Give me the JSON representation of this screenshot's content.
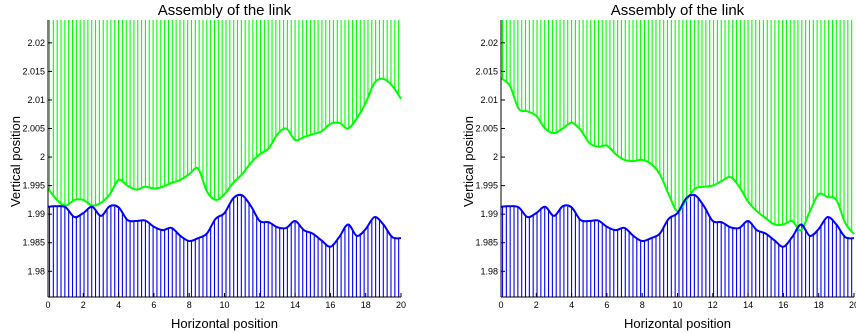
{
  "chart_data": [
    {
      "type": "line",
      "title": "Assembly of the link",
      "xlabel": "Horizontal position",
      "ylabel": "Vertical position",
      "xlim": [
        0,
        20
      ],
      "ylim": [
        1.9755,
        2.024
      ],
      "xticks": [
        "0",
        "2",
        "4",
        "6",
        "8",
        "10",
        "12",
        "14",
        "16",
        "18",
        "20"
      ],
      "yticks": [
        "1.98",
        "1.985",
        "1.99",
        "1.995",
        "2",
        "2.005",
        "2.01",
        "2.015",
        "2.02"
      ],
      "grid": false,
      "series": [
        {
          "color": "#00ff00",
          "fill": "above",
          "x": [
            0,
            0.5,
            1,
            1.5,
            2,
            2.5,
            3,
            3.5,
            4,
            4.5,
            5,
            5.5,
            6,
            6.5,
            7,
            7.5,
            8,
            8.5,
            9,
            9.5,
            10,
            10.5,
            11,
            11.5,
            12,
            12.5,
            13,
            13.5,
            14,
            14.5,
            15,
            15.5,
            16,
            16.5,
            17,
            17.5,
            18,
            18.5,
            19,
            19.5,
            20
          ],
          "y": [
            1.9945,
            1.9925,
            1.9915,
            1.9925,
            1.9925,
            1.9915,
            1.992,
            1.9935,
            1.996,
            1.995,
            1.9943,
            1.9948,
            1.9945,
            1.9948,
            1.9955,
            1.996,
            1.997,
            1.998,
            1.994,
            1.9925,
            1.9935,
            1.9955,
            1.997,
            1.999,
            2.0005,
            2.0015,
            2.004,
            2.005,
            2.003,
            2.0035,
            2.004,
            2.0045,
            2.0058,
            2.006,
            2.005,
            2.0068,
            2.0095,
            2.013,
            2.0137,
            2.0125,
            2.0102
          ]
        },
        {
          "color": "#0000ff",
          "fill": "below",
          "x": [
            0,
            0.5,
            1,
            1.5,
            2,
            2.5,
            3,
            3.5,
            4,
            4.5,
            5,
            5.5,
            6,
            6.5,
            7,
            7.5,
            8,
            8.5,
            9,
            9.5,
            10,
            10.5,
            11,
            11.5,
            12,
            12.5,
            13,
            13.5,
            14,
            14.5,
            15,
            15.5,
            16,
            16.5,
            17,
            17.5,
            18,
            18.5,
            19,
            19.5,
            20
          ],
          "y": [
            1.9913,
            1.9914,
            1.9912,
            1.9895,
            1.9902,
            1.9913,
            1.9897,
            1.9914,
            1.9912,
            1.989,
            1.9888,
            1.9889,
            1.9878,
            1.9872,
            1.9876,
            1.9862,
            1.9853,
            1.9858,
            1.9866,
            1.9892,
            1.9902,
            1.9928,
            1.9933,
            1.9914,
            1.9888,
            1.9886,
            1.9877,
            1.9876,
            1.9888,
            1.9872,
            1.9866,
            1.9854,
            1.9843,
            1.986,
            1.9882,
            1.9862,
            1.9874,
            1.9895,
            1.9882,
            1.986,
            1.9858
          ]
        }
      ]
    },
    {
      "type": "line",
      "title": "Assembly of the link",
      "xlabel": "Horizontal position",
      "ylabel": "Vertical position",
      "xlim": [
        0,
        20
      ],
      "ylim": [
        1.9755,
        2.024
      ],
      "xticks": [
        "0",
        "2",
        "4",
        "6",
        "8",
        "10",
        "12",
        "14",
        "16",
        "18",
        "20"
      ],
      "yticks": [
        "1.98",
        "1.985",
        "1.99",
        "1.995",
        "2",
        "2.005",
        "2.01",
        "2.015",
        "2.02"
      ],
      "grid": false,
      "series": [
        {
          "color": "#00ff00",
          "fill": "above",
          "x": [
            0,
            0.5,
            1,
            1.5,
            2,
            2.5,
            3,
            3.5,
            4,
            4.5,
            5,
            5.5,
            6,
            6.5,
            7,
            7.5,
            8,
            8.5,
            9,
            9.5,
            10,
            10.5,
            11,
            11.5,
            12,
            12.5,
            13,
            13.5,
            14,
            14.5,
            15,
            15.5,
            16,
            16.5,
            17,
            17.5,
            18,
            18.5,
            19,
            19.5,
            20
          ],
          "y": [
            2.0138,
            2.0125,
            2.0085,
            2.008,
            2.0072,
            2.005,
            2.0042,
            2.005,
            2.006,
            2.0048,
            2.0025,
            2.0018,
            2.002,
            2.0005,
            1.9995,
            1.9993,
            1.9995,
            1.9988,
            1.997,
            1.9935,
            1.9905,
            1.9925,
            1.9945,
            1.9948,
            1.995,
            1.9958,
            1.9965,
            1.9948,
            1.9922,
            1.9905,
            1.9893,
            1.9882,
            1.9882,
            1.9888,
            1.9872,
            1.9905,
            1.9935,
            1.993,
            1.9925,
            1.9885,
            1.9865
          ]
        },
        {
          "color": "#0000ff",
          "fill": "below",
          "x": [
            0,
            0.5,
            1,
            1.5,
            2,
            2.5,
            3,
            3.5,
            4,
            4.5,
            5,
            5.5,
            6,
            6.5,
            7,
            7.5,
            8,
            8.5,
            9,
            9.5,
            10,
            10.5,
            11,
            11.5,
            12,
            12.5,
            13,
            13.5,
            14,
            14.5,
            15,
            15.5,
            16,
            16.5,
            17,
            17.5,
            18,
            18.5,
            19,
            19.5,
            20
          ],
          "y": [
            1.9913,
            1.9914,
            1.9912,
            1.9895,
            1.9902,
            1.9913,
            1.9897,
            1.9914,
            1.9912,
            1.989,
            1.9888,
            1.9889,
            1.9878,
            1.9872,
            1.9876,
            1.9862,
            1.9853,
            1.9858,
            1.9866,
            1.9892,
            1.9902,
            1.9928,
            1.9933,
            1.9914,
            1.9888,
            1.9886,
            1.9877,
            1.9876,
            1.9888,
            1.9872,
            1.9866,
            1.9854,
            1.9843,
            1.986,
            1.9882,
            1.9862,
            1.9874,
            1.9895,
            1.9882,
            1.986,
            1.9858
          ]
        }
      ]
    }
  ]
}
